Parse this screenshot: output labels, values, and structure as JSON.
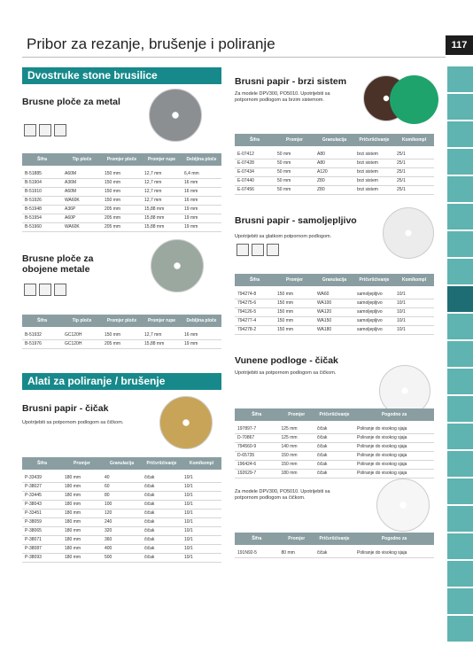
{
  "header": {
    "title": "Pribor za rezanje, brušenje i poliranje",
    "page_number": "117"
  },
  "banners": [
    "Dvostruke stone brusilice",
    "Alati za poliranje / brušenje"
  ],
  "sections": [
    {
      "heading": "Brusne ploče za metal",
      "table": {
        "columns": [
          "Šifra",
          "Tip ploče",
          "Promjer ploče",
          "Promjer rupe",
          "Debljina ploče"
        ],
        "rows": [
          [
            "B-51885",
            "A60M",
            "150 mm",
            "12,7 mm",
            "6,4 mm"
          ],
          [
            "B-51904",
            "A36M",
            "150 mm",
            "12,7 mm",
            "16 mm"
          ],
          [
            "B-51910",
            "A60M",
            "150 mm",
            "12,7 mm",
            "16 mm"
          ],
          [
            "B-51926",
            "WA60K",
            "150 mm",
            "12,7 mm",
            "16 mm"
          ],
          [
            "B-51948",
            "A36P",
            "205 mm",
            "15,88 mm",
            "19 mm"
          ],
          [
            "B-51954",
            "A60P",
            "205 mm",
            "15,88 mm",
            "19 mm"
          ],
          [
            "B-51960",
            "WA60K",
            "205 mm",
            "15,88 mm",
            "19 mm"
          ]
        ]
      }
    },
    {
      "heading": "Brusne ploče za obojene metale",
      "table": {
        "columns": [
          "Šifra",
          "Tip ploče",
          "Promjer ploče",
          "Promjer rupe",
          "Debljina ploče"
        ],
        "rows": [
          [
            "B-51932",
            "GC120H",
            "150 mm",
            "12,7 mm",
            "16 mm"
          ],
          [
            "B-51976",
            "GC120H",
            "205 mm",
            "15,88 mm",
            "19 mm"
          ]
        ]
      }
    },
    {
      "heading": "Brusni papir - čičak",
      "description": "Upotrijebiti sa potpornom podlogom sa čičkom.",
      "table": {
        "columns": [
          "Šifra",
          "Promjer",
          "Granulacija",
          "Pričvršćivanje",
          "Kom/kompl"
        ],
        "rows": [
          [
            "P-33439",
            "180 mm",
            "40",
            "čičak",
            "10/1"
          ],
          [
            "P-38027",
            "180 mm",
            "60",
            "čičak",
            "10/1"
          ],
          [
            "P-33445",
            "180 mm",
            "80",
            "čičak",
            "10/1"
          ],
          [
            "P-38043",
            "180 mm",
            "100",
            "čičak",
            "10/1"
          ],
          [
            "P-33451",
            "180 mm",
            "120",
            "čičak",
            "10/1"
          ],
          [
            "P-38059",
            "180 mm",
            "240",
            "čičak",
            "10/1"
          ],
          [
            "P-38065",
            "180 mm",
            "320",
            "čičak",
            "10/1"
          ],
          [
            "P-38071",
            "180 mm",
            "360",
            "čičak",
            "10/1"
          ],
          [
            "P-38087",
            "180 mm",
            "400",
            "čičak",
            "10/1"
          ],
          [
            "P-38093",
            "180 mm",
            "500",
            "čičak",
            "10/1"
          ]
        ]
      }
    },
    {
      "heading": "Brusni papir - brzi sistem",
      "description": "Za modele DPV300, PO5010. Upotrijebiti sa potpornom podlogom sa brzim sistemom.",
      "table": {
        "columns": [
          "Šifra",
          "Promjer",
          "Granulacija",
          "Pričvršćivanje",
          "Kom/kompl"
        ],
        "rows": [
          [
            "E-07412",
            "50 mm",
            "A80",
            "brzi sistem",
            "25/1"
          ],
          [
            "E-07428",
            "50 mm",
            "A80",
            "brzi sistem",
            "25/1"
          ],
          [
            "E-07434",
            "50 mm",
            "A120",
            "brzi sistem",
            "25/1"
          ],
          [
            "E-07440",
            "50 mm",
            "Z80",
            "brzi sistem",
            "25/1"
          ],
          [
            "E-07456",
            "50 mm",
            "Z80",
            "brzi sistem",
            "25/1"
          ]
        ]
      }
    },
    {
      "heading": "Brusni papir - samoljepljivo",
      "description": "Upotrijebiti sa glatkom potpornom podlogom.",
      "table": {
        "columns": [
          "Šifra",
          "Promjer",
          "Granulacija",
          "Pričvršćivanje",
          "Kom/kompl"
        ],
        "rows": [
          [
            "794274-8",
            "150 mm",
            "WA60",
            "samoljepljivo",
            "10/1"
          ],
          [
            "794275-6",
            "150 mm",
            "WA100",
            "samoljepljivo",
            "10/1"
          ],
          [
            "794126-5",
            "150 mm",
            "WA120",
            "samoljepljivo",
            "10/1"
          ],
          [
            "794277-4",
            "150 mm",
            "WA150",
            "samoljepljivo",
            "10/1"
          ],
          [
            "794278-2",
            "150 mm",
            "WA180",
            "samoljepljivo",
            "10/1"
          ]
        ]
      }
    },
    {
      "heading": "Vunene podloge - čičak",
      "description": "Upotrijebiti sa potpornom podlogom sa čičkom.",
      "table": {
        "columns": [
          "Šifra",
          "Promjer",
          "Pričvršćivanje",
          "Pogodno za"
        ],
        "rows": [
          [
            "197897-7",
            "125 mm",
            "čičak",
            "Poliranje do visokog sjaja"
          ],
          [
            "D-70867",
            "125 mm",
            "čičak",
            "Poliranje do visokog sjaja"
          ],
          [
            "794560-9",
            "140 mm",
            "čičak",
            "Poliranje do visokog sjaja"
          ],
          [
            "D-65735",
            "150 mm",
            "čičak",
            "Poliranje do visokog sjaja"
          ],
          [
            "196424-6",
            "150 mm",
            "čičak",
            "Poliranje do visokog sjaja"
          ],
          [
            "192629-7",
            "180 mm",
            "čičak",
            "Poliranje do visokog sjaja"
          ]
        ]
      }
    },
    {
      "description": "Za modele DPV300, PO5010. Upotrijebiti sa potpornom podlogom sa čičkom.",
      "table": {
        "columns": [
          "Šifra",
          "Promjer",
          "Pričvršćivanje",
          "Pogodno za"
        ],
        "rows": [
          [
            "191N92-5",
            "80 mm",
            "čičak",
            "Poliranje do visokog sjaja"
          ]
        ]
      }
    }
  ]
}
